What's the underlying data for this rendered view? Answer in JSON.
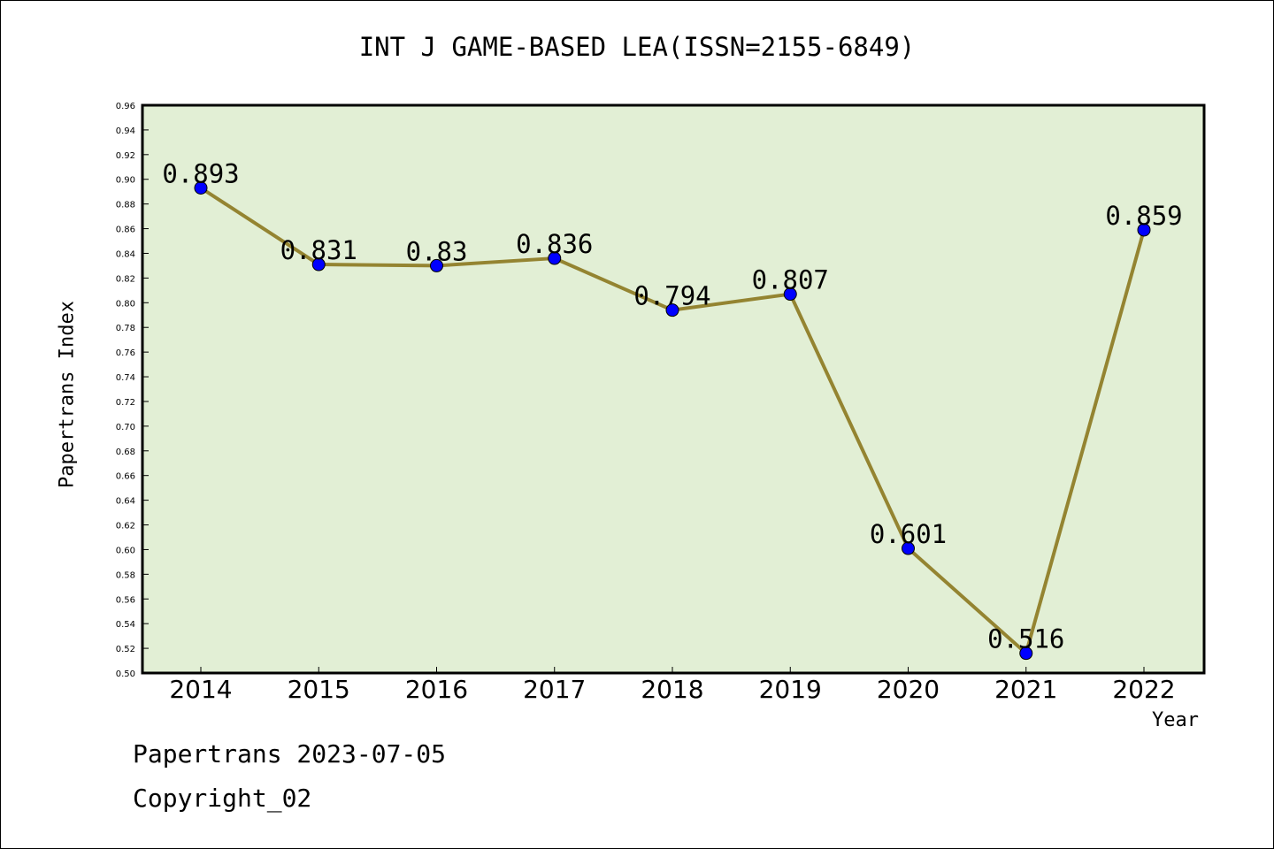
{
  "chart_data": {
    "type": "line",
    "title": "INT J GAME-BASED LEA(ISSN=2155-6849)",
    "xlabel": "Year",
    "ylabel": "Papertrans Index",
    "categories": [
      "2014",
      "2015",
      "2016",
      "2017",
      "2018",
      "2019",
      "2020",
      "2021",
      "2022"
    ],
    "series": [
      {
        "values": [
          0.893,
          0.831,
          0.83,
          0.836,
          0.794,
          0.807,
          0.601,
          0.516,
          0.859
        ]
      }
    ],
    "data_labels": [
      "0.893",
      "0.831",
      "0.83",
      "0.836",
      "0.794",
      "0.807",
      "0.601",
      "0.516",
      "0.859"
    ],
    "ylim": [
      0.5,
      0.96
    ],
    "ytick_step": 0.02,
    "grid": false,
    "colors": {
      "plot_background": "#e2efd5",
      "line": "#948431",
      "marker": "#0000ff"
    }
  },
  "footer": {
    "line1": "Papertrans 2023-07-05",
    "line2": "Copyright_02"
  }
}
